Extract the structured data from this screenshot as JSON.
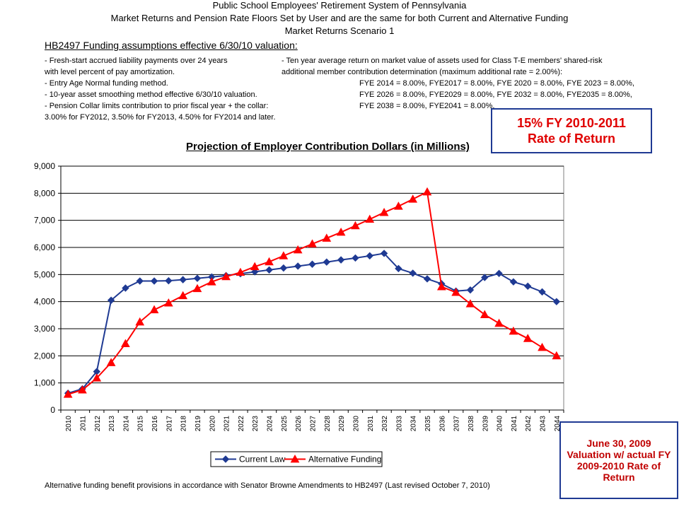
{
  "header": {
    "line1": "Public School Employees' Retirement System of Pennsylvania",
    "line2": "Market Returns and Pension Rate Floors Set by User and are the same for both Current and Alternative Funding",
    "line3": "Market Returns Scenario 1"
  },
  "assumptions": {
    "title": "HB2497 Funding assumptions effective 6/30/10 valuation:",
    "left": [
      "- Fresh-start accrued liability payments over 24 years",
      "   with level percent of pay amortization.",
      "- Entry Age Normal funding method.",
      "- 10-year asset smoothing method effective 6/30/10 valuation.",
      "- Pension Collar limits contribution to prior fiscal year + the collar:",
      "   3.00% for FY2012, 3.50% for FY2013, 4.50% for FY2014 and later."
    ],
    "right": [
      "- Ten year average return on market value of assets used for Class T-E members' shared-risk",
      "  additional member contribution determination (maximum additional rate = 2.00%):",
      "FYE 2014 = 8.00%,   FYE2017 = 8.00%,   FYE 2020 = 8.00%,   FYE 2023 = 8.00%,",
      "FYE 2026 = 8.00%,   FYE2029 = 8.00%,   FYE 2032 = 8.00%,   FYE2035 = 8.00%,",
      "FYE 2038 = 8.00%,   FYE2041 = 8.00%."
    ]
  },
  "callouts": {
    "rate_of_return": [
      "15% FY 2010-2011",
      "Rate of Return"
    ],
    "valuation": "June 30, 2009 Valuation w/ actual FY 2009-2010 Rate of Return"
  },
  "footer": "Alternative funding benefit provisions in accordance with Senator Browne Amendments to HB2497 (Last revised October 7, 2010)",
  "colors": {
    "current_law": "#1f3a93",
    "alternative_funding": "#ff0000",
    "callout_border": "#1f3a93"
  },
  "chart_data": {
    "type": "line",
    "title": "Projection of Employer Contribution Dollars (in Millions)",
    "xlabel": "",
    "ylabel": "",
    "ylim": [
      0,
      9000
    ],
    "yticks": [
      0,
      1000,
      2000,
      3000,
      4000,
      5000,
      6000,
      7000,
      8000,
      9000
    ],
    "ytick_labels": [
      "0",
      "1,000",
      "2,000",
      "3,000",
      "4,000",
      "5,000",
      "6,000",
      "7,000",
      "8,000",
      "9,000"
    ],
    "grid": true,
    "legend": "bottom",
    "categories": [
      "2010",
      "2011",
      "2012",
      "2013",
      "2014",
      "2015",
      "2016",
      "2017",
      "2018",
      "2019",
      "2020",
      "2021",
      "2022",
      "2023",
      "2024",
      "2025",
      "2026",
      "2027",
      "2028",
      "2029",
      "2030",
      "2031",
      "2032",
      "2033",
      "2034",
      "2035",
      "2036",
      "2037",
      "2038",
      "2039",
      "2040",
      "2041",
      "2042",
      "2043",
      "2044"
    ],
    "series": [
      {
        "name": "Current Law",
        "color": "#1f3a93",
        "marker": "diamond",
        "values": [
          620,
          780,
          1420,
          4050,
          4500,
          4760,
          4760,
          4770,
          4810,
          4860,
          4910,
          4960,
          5030,
          5100,
          5170,
          5240,
          5310,
          5380,
          5460,
          5540,
          5610,
          5690,
          5780,
          5220,
          5050,
          4840,
          4660,
          4390,
          4430,
          4890,
          5040,
          4730,
          4570,
          4360,
          4000
        ]
      },
      {
        "name": "Alternative Funding",
        "color": "#ff0000",
        "marker": "triangle",
        "values": [
          580,
          740,
          1180,
          1750,
          2450,
          3250,
          3700,
          3950,
          4220,
          4480,
          4730,
          4920,
          5080,
          5290,
          5470,
          5690,
          5910,
          6130,
          6340,
          6560,
          6800,
          7040,
          7290,
          7520,
          7780,
          8050,
          4550,
          4340,
          3920,
          3520,
          3200,
          2910,
          2640,
          2310,
          2000
        ]
      }
    ]
  }
}
